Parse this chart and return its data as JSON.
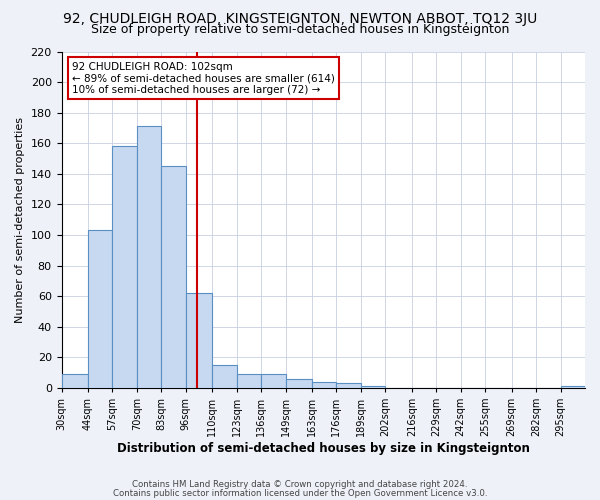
{
  "title": "92, CHUDLEIGH ROAD, KINGSTEIGNTON, NEWTON ABBOT, TQ12 3JU",
  "subtitle": "Size of property relative to semi-detached houses in Kingsteignton",
  "xlabel": "Distribution of semi-detached houses by size in Kingsteignton",
  "ylabel": "Number of semi-detached properties",
  "bin_labels": [
    "30sqm",
    "44sqm",
    "57sqm",
    "70sqm",
    "83sqm",
    "96sqm",
    "110sqm",
    "123sqm",
    "136sqm",
    "149sqm",
    "163sqm",
    "176sqm",
    "189sqm",
    "202sqm",
    "216sqm",
    "229sqm",
    "242sqm",
    "255sqm",
    "269sqm",
    "282sqm",
    "295sqm"
  ],
  "bin_values": [
    9,
    103,
    158,
    171,
    145,
    62,
    15,
    9,
    9,
    6,
    4,
    3,
    1,
    0,
    0,
    0,
    0,
    0,
    0,
    0,
    1
  ],
  "bar_color": "#c6d9f0",
  "bar_edge_color": "#5a8fc3",
  "vline_x": 102,
  "bin_edges": [
    30,
    44,
    57,
    70,
    83,
    96,
    110,
    123,
    136,
    149,
    163,
    176,
    189,
    202,
    216,
    229,
    242,
    255,
    269,
    282,
    295,
    308
  ],
  "ylim": [
    0,
    220
  ],
  "yticks": [
    0,
    20,
    40,
    60,
    80,
    100,
    120,
    140,
    160,
    180,
    200,
    220
  ],
  "annotation_title": "92 CHUDLEIGH ROAD: 102sqm",
  "annotation_line1": "← 89% of semi-detached houses are smaller (614)",
  "annotation_line2": "10% of semi-detached houses are larger (72) →",
  "footer_line1": "Contains HM Land Registry data © Crown copyright and database right 2024.",
  "footer_line2": "Contains public sector information licensed under the Open Government Licence v3.0.",
  "background_color": "#eef2f8",
  "plot_background": "#ffffff",
  "grid_color": "#c8d0e0",
  "vline_color": "#cc0000",
  "title_fontsize": 10,
  "subtitle_fontsize": 9
}
